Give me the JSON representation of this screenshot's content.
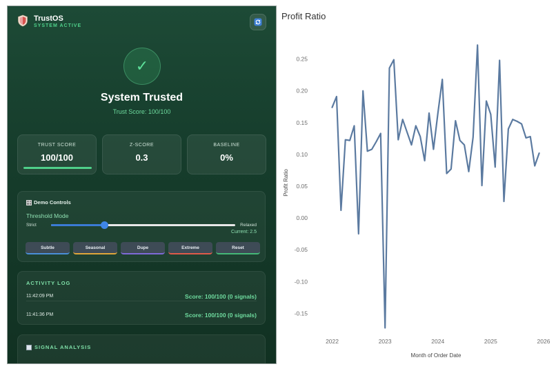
{
  "app": {
    "title": "TrustOS",
    "status": "SYSTEM ACTIVE",
    "icons": {
      "logo": "shield-icon",
      "refresh": "refresh-icon",
      "check": "check-icon"
    }
  },
  "hero": {
    "check_glyph": "✓",
    "title": "System Trusted",
    "subtitle": "Trust Score: 100/100"
  },
  "metrics": [
    {
      "label": "TRUST SCORE",
      "value": "100/100",
      "progress": 1.0
    },
    {
      "label": "Z-SCORE",
      "value": "0.3"
    },
    {
      "label": "BASELINE",
      "value": "0%"
    }
  ],
  "controls": {
    "title": "Demo Controls",
    "threshold_label": "Threshold Mode",
    "min_label": "Strict",
    "max_label": "Relaxed",
    "current": "Current: 2.5",
    "slider_fraction": 0.29,
    "buttons": [
      {
        "label": "Subtle",
        "accent": "#4a8fd8"
      },
      {
        "label": "Seasonal",
        "accent": "#e0a63a"
      },
      {
        "label": "Dupe",
        "accent": "#7e6ad8"
      },
      {
        "label": "Extreme",
        "accent": "#e05a4a"
      },
      {
        "label": "Reset",
        "accent": "#45b878"
      }
    ]
  },
  "activity": {
    "title": "ACTIVITY LOG",
    "entries": [
      {
        "time": "11:42:09 PM",
        "score": "Score: 100/100 (0 signals)"
      },
      {
        "time": "11:41:36 PM",
        "score": "Score: 100/100 (0 signals)"
      }
    ]
  },
  "signal": {
    "title": "SIGNAL ANALYSIS"
  },
  "colors": {
    "accent": "#4fd08a",
    "line": "#5b7aa0"
  },
  "chart_data": {
    "type": "line",
    "title": "Profit Ratio",
    "xlabel": "Month of Order Date",
    "ylabel": "Profit Ratio",
    "xlim": [
      "2021-09",
      "2026-01"
    ],
    "ylim": [
      -0.18,
      0.28
    ],
    "x_ticks": [
      "2022",
      "2023",
      "2024",
      "2025",
      "2026"
    ],
    "y_ticks": [
      0.25,
      0.2,
      0.15,
      0.1,
      0.05,
      0.0,
      -0.05,
      -0.1,
      -0.15
    ],
    "y_tick_labels": [
      "0.25",
      "0.20",
      "0.15",
      "0.10",
      "0.05",
      "0.00",
      "-0.05",
      "-0.10",
      "-0.15"
    ],
    "grid": false,
    "series": [
      {
        "x": [
          "2022-01",
          "2022-02",
          "2022-03",
          "2022-04",
          "2022-05",
          "2022-06",
          "2022-07",
          "2022-08",
          "2022-09",
          "2022-10",
          "2022-11",
          "2022-12",
          "2023-01",
          "2023-02",
          "2023-03",
          "2023-04",
          "2023-05",
          "2023-06",
          "2023-07",
          "2023-08",
          "2023-09",
          "2023-10",
          "2023-11",
          "2023-12",
          "2024-01",
          "2024-02",
          "2024-03",
          "2024-04",
          "2024-05",
          "2024-06",
          "2024-07",
          "2024-08",
          "2024-09",
          "2024-10",
          "2024-11",
          "2024-12",
          "2025-01",
          "2025-02",
          "2025-03",
          "2025-04",
          "2025-05",
          "2025-06",
          "2025-07",
          "2025-08",
          "2025-09",
          "2025-10",
          "2025-11",
          "2025-12"
        ],
        "values": [
          0.174,
          0.191,
          0.012,
          0.123,
          0.122,
          0.145,
          -0.025,
          0.2,
          0.105,
          0.108,
          0.12,
          0.133,
          -0.173,
          0.236,
          0.249,
          0.123,
          0.155,
          0.135,
          0.115,
          0.145,
          0.128,
          0.09,
          0.165,
          0.108,
          0.165,
          0.218,
          0.07,
          0.077,
          0.153,
          0.122,
          0.115,
          0.073,
          0.127,
          0.272,
          0.051,
          0.184,
          0.163,
          0.08,
          0.248,
          0.026,
          0.14,
          0.155,
          0.152,
          0.148,
          0.126,
          0.128,
          0.082,
          0.102
        ]
      }
    ]
  }
}
